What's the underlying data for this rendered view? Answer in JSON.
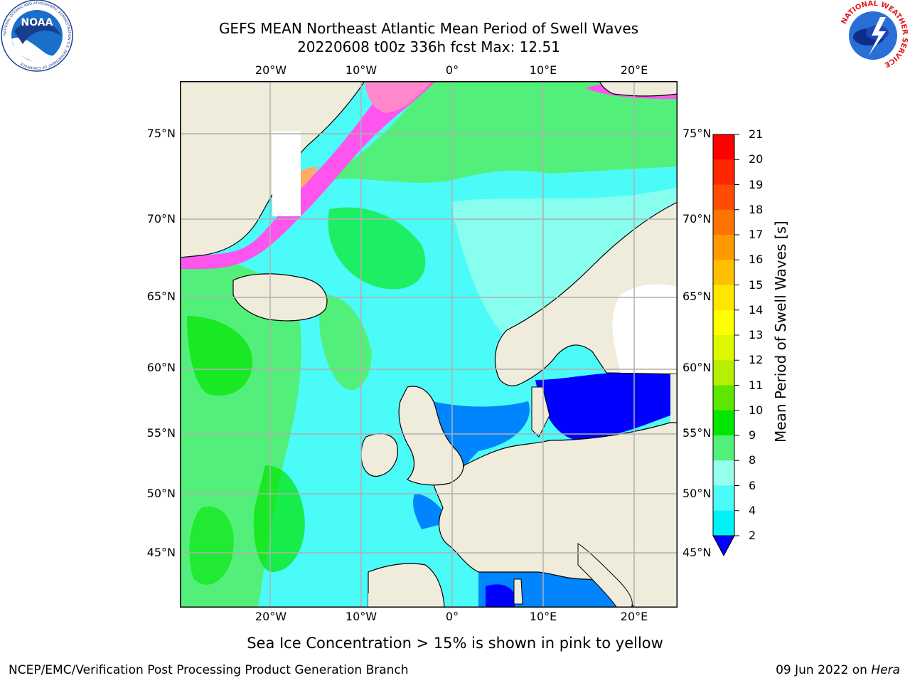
{
  "header": {
    "title_line1": "GEFS MEAN Northeast Atlantic Mean Period of Swell Waves",
    "title_line2": "20220608 t00z 336h fcst   Max: 12.51"
  },
  "logos": {
    "noaa_text": "NOAA",
    "noaa_ring": "NATIONAL OCEANIC AND ATMOSPHERIC ADMINISTRATION  U.S. DEPARTMENT OF COMMERCE",
    "nws_ring": "NATIONAL WEATHER SERVICE"
  },
  "map": {
    "lon_ticks": [
      "20°W",
      "10°W",
      "0°",
      "10°E",
      "20°E"
    ],
    "lat_ticks": [
      "75°N",
      "70°N",
      "65°N",
      "60°N",
      "55°N",
      "50°N",
      "45°N"
    ]
  },
  "colorbar": {
    "title": "Mean Period of Swell Waves [s]",
    "labels": [
      "21",
      "20",
      "19",
      "18",
      "17",
      "16",
      "15",
      "14",
      "13",
      "12",
      "11",
      "10",
      "9",
      "8",
      "6",
      "4",
      "2"
    ],
    "colors": [
      "#ff0000",
      "#ff2600",
      "#ff4c00",
      "#ff7300",
      "#ff9900",
      "#ffbf00",
      "#ffe600",
      "#fffe00",
      "#dcf700",
      "#b6ef00",
      "#5ee600",
      "#00e600",
      "#52f07a",
      "#96ffeb",
      "#4bfbf8",
      "#00f2f8",
      "#0085ff",
      "#0000ff"
    ],
    "ice_colors": [
      "#ff55ee",
      "#ff88cc",
      "#ffaa66"
    ],
    "land_color": "#efecdc",
    "ice_free_land": "#ffffff"
  },
  "notes": {
    "sea_ice": "Sea Ice Concentration > 15% is shown in pink to yellow"
  },
  "footer": {
    "left": "NCEP/EMC/Verification Post Processing Product Generation Branch",
    "date": "09 Jun 2022 on ",
    "host": "Hera"
  }
}
